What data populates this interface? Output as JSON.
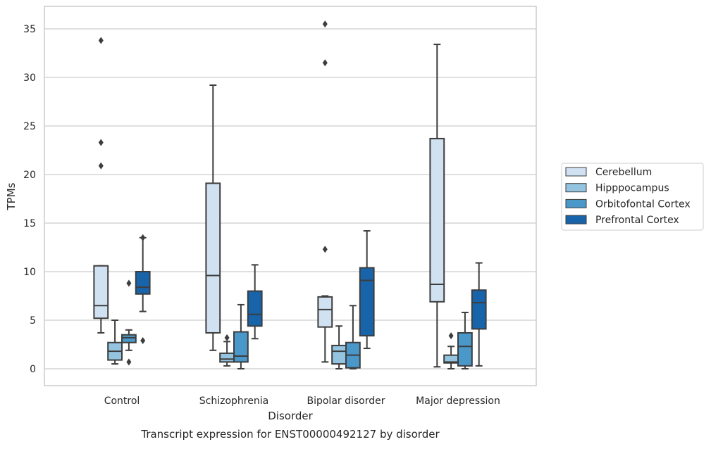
{
  "chart_data": {
    "type": "box",
    "title": "Transcript expression for ENST00000492127 by disorder",
    "xlabel": "Disorder",
    "ylabel": "TPMs",
    "ylim": [
      -1.7,
      37.2
    ],
    "yticks": [
      0,
      5,
      10,
      15,
      20,
      25,
      30,
      35
    ],
    "categories": [
      "Control",
      "Schizophrenia",
      "Bipolar disorder",
      "Major depression"
    ],
    "grid": "horizontal",
    "legend_position": "right",
    "series": [
      {
        "name": "Cerebellum",
        "color": "#d0e1f2",
        "boxes": [
          {
            "whisker_low": 3.7,
            "q1": 5.2,
            "median": 6.5,
            "q3": 10.6,
            "whisker_high": 10.6,
            "outliers": [
              33.8,
              23.3,
              20.9
            ]
          },
          {
            "whisker_low": 1.9,
            "q1": 3.7,
            "median": 9.6,
            "q3": 19.1,
            "whisker_high": 29.2,
            "outliers": []
          },
          {
            "whisker_low": 0.7,
            "q1": 4.3,
            "median": 6.1,
            "q3": 7.4,
            "whisker_high": 7.5,
            "outliers": [
              35.5,
              31.5,
              12.3
            ]
          },
          {
            "whisker_low": 0.2,
            "q1": 6.9,
            "median": 8.7,
            "q3": 23.7,
            "whisker_high": 33.4,
            "outliers": []
          }
        ]
      },
      {
        "name": "Hipppocampus",
        "color": "#94c4df",
        "boxes": [
          {
            "whisker_low": 0.5,
            "q1": 0.9,
            "median": 1.8,
            "q3": 2.7,
            "whisker_high": 5.0,
            "outliers": []
          },
          {
            "whisker_low": 0.3,
            "q1": 0.7,
            "median": 1.0,
            "q3": 1.6,
            "whisker_high": 2.8,
            "outliers": [
              3.2
            ]
          },
          {
            "whisker_low": 0.0,
            "q1": 0.5,
            "median": 1.8,
            "q3": 2.4,
            "whisker_high": 4.4,
            "outliers": []
          },
          {
            "whisker_low": 0.0,
            "q1": 0.6,
            "median": 0.7,
            "q3": 1.4,
            "whisker_high": 2.3,
            "outliers": [
              3.4
            ]
          }
        ]
      },
      {
        "name": "Orbitofontal Cortex",
        "color": "#4a98c9",
        "boxes": [
          {
            "whisker_low": 1.9,
            "q1": 2.7,
            "median": 3.2,
            "q3": 3.5,
            "whisker_high": 4.0,
            "outliers": [
              8.8,
              0.7
            ]
          },
          {
            "whisker_low": 0.0,
            "q1": 0.7,
            "median": 1.3,
            "q3": 3.8,
            "whisker_high": 6.6,
            "outliers": []
          },
          {
            "whisker_low": 0.0,
            "q1": 0.1,
            "median": 1.4,
            "q3": 2.7,
            "whisker_high": 6.5,
            "outliers": []
          },
          {
            "whisker_low": 0.0,
            "q1": 0.3,
            "median": 2.3,
            "q3": 3.7,
            "whisker_high": 5.8,
            "outliers": []
          }
        ]
      },
      {
        "name": "Prefrontal Cortex",
        "color": "#1764ab",
        "boxes": [
          {
            "whisker_low": 5.9,
            "q1": 7.7,
            "median": 8.4,
            "q3": 10.0,
            "whisker_high": 13.5,
            "outliers": [
              13.5,
              2.9
            ]
          },
          {
            "whisker_low": 3.1,
            "q1": 4.4,
            "median": 5.6,
            "q3": 8.0,
            "whisker_high": 10.7,
            "outliers": []
          },
          {
            "whisker_low": 2.1,
            "q1": 3.4,
            "median": 9.1,
            "q3": 10.4,
            "whisker_high": 14.2,
            "outliers": []
          },
          {
            "whisker_low": 0.3,
            "q1": 4.1,
            "median": 6.8,
            "q3": 8.1,
            "whisker_high": 10.9,
            "outliers": []
          }
        ]
      }
    ]
  }
}
